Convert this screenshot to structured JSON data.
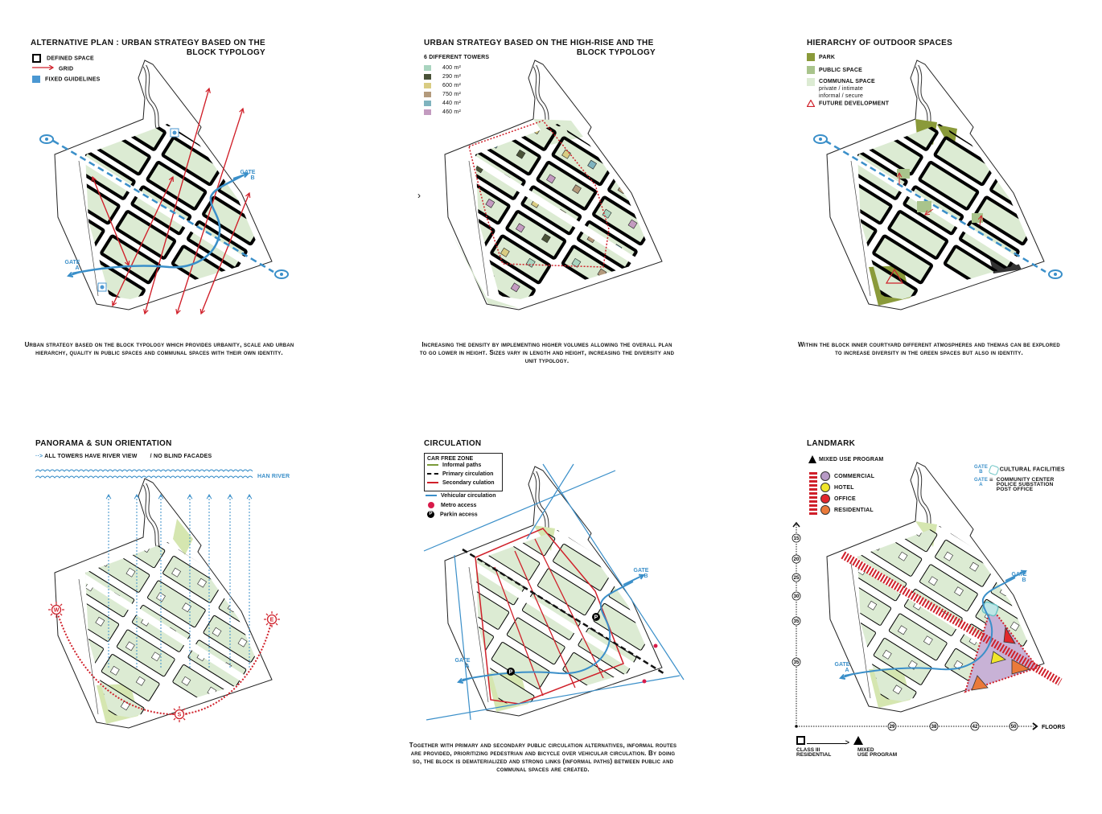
{
  "panels": {
    "alt_plan": {
      "title_line1": "ALTERNATIVE PLAN : URBAN STRATEGY BASED ON THE",
      "title_line2": "BLOCK TYPOLOGY",
      "legend": [
        {
          "label": "DEFINED SPACE",
          "icon": "black-square-outline-icon"
        },
        {
          "label": "GRID",
          "icon": "red-arrow-icon"
        },
        {
          "label": "FIXED GUIDELINES",
          "icon": "blue-square-icon"
        }
      ],
      "gate_a": [
        "GATE",
        "A"
      ],
      "gate_b": [
        "GATE",
        "B"
      ],
      "caption": "Urban strategy based on the block typology which provides urbanity, scale and urban hierarchy, quality in public spaces and communal spaces with their own identity."
    },
    "high_rise": {
      "title_line1": "URBAN STRATEGY BASED ON THE HIGH-RISE AND THE",
      "title_line2": "BLOCK TYPOLOGY",
      "legend_title": "6 DIFFERENT TOWERS",
      "legend": [
        {
          "label": "400 m²",
          "color": "#a9d4bf"
        },
        {
          "label": "290 m²",
          "color": "#4a5238"
        },
        {
          "label": "600 m²",
          "color": "#d9cc82"
        },
        {
          "label": "750 m²",
          "color": "#b39a7c"
        },
        {
          "label": "440 m²",
          "color": "#7fb3be"
        },
        {
          "label": "460 m²",
          "color": "#c39bc0"
        }
      ],
      "caption": "Increasing the density by implementing higher volumes allowing the overall plan to go lower in height. Sizes vary in length and height, increasing the diversity and unit typology."
    },
    "outdoor": {
      "title": "HIERARCHY OF OUTDOOR SPACES",
      "legend": [
        {
          "label": "PARK",
          "color": "#8a9a3a"
        },
        {
          "label": "PUBLIC SPACE",
          "color": "#a9c48c"
        },
        {
          "label": "COMMUNAL SPACE",
          "sub1": "private / intimate",
          "sub2": "informal / secure",
          "color": "#dcebd3"
        },
        {
          "label": "FUTURE DEVELOPMENT",
          "icon": "warning-triangle-icon"
        }
      ],
      "caption": "Within the block inner courtyard different atmospheres and themas can be explored to increase diversity in the green spaces but also in identity."
    },
    "panorama": {
      "title": "PANORAMA & SUN ORIENTATION",
      "legend_view": "ALL TOWERS HAVE RIVER VIEW",
      "legend_facade": "NO BLIND FACADES",
      "river_label": "HAN RIVER",
      "sun_west": "W",
      "sun_east": "E",
      "sun_south": "S"
    },
    "circulation": {
      "title": "CIRCULATION",
      "box_title": "CAR FREE ZONE",
      "box_items": [
        {
          "label": "Informal paths",
          "color": "#7a9a3a"
        },
        {
          "label": "Primary circulation",
          "color": "#111111"
        },
        {
          "label": "Secondary culation",
          "color": "#d0202a"
        }
      ],
      "items": [
        {
          "label": "Vehicular circulation",
          "color": "#3a8fc9"
        },
        {
          "label": "Metro access",
          "color": "#d81b4a"
        },
        {
          "label": "Parkin access",
          "icon": "parking-icon"
        }
      ],
      "parking_letter": "P",
      "gate_a": [
        "GATE",
        "A"
      ],
      "gate_b": [
        "GATE",
        "B"
      ],
      "caption": "Together with primary and secondary public circulation alternatives, informal routes are provided, prioritizing pedestrian and bicycle over vehicular circulation. By doing so, the block is dematerialized and strong links (informal paths) between public and communal spaces are created."
    },
    "landmark": {
      "title": "LANDMARK",
      "mixed_use": "MIXED USE PROGRAM",
      "programs": [
        {
          "label": "COMMERCIAL",
          "color": "#b79ac6"
        },
        {
          "label": "HOTEL",
          "color": "#f0e62a"
        },
        {
          "label": "OFFICE",
          "color": "#e2262c"
        },
        {
          "label": "RESIDENTIAL",
          "color": "#ea7a3a"
        }
      ],
      "gate_b_small": [
        "GATE",
        "B"
      ],
      "gate_a_small": [
        "GATE",
        "A"
      ],
      "cultural": "CULTURAL FACILITIES",
      "community": [
        "COMMUNITY CENTER",
        "POLICE SUBSTATION",
        "POST OFFICE"
      ],
      "gate_a": [
        "GATE",
        "A"
      ],
      "gate_b": [
        "GATE",
        "B"
      ],
      "y_ticks": [
        "15",
        "20",
        "25",
        "30",
        "35",
        "35"
      ],
      "x_ticks": [
        "29",
        "38",
        "42",
        "50"
      ],
      "x_axis_label": "FLOORS",
      "from_label": [
        "CLASS III",
        "RESIDENTIAL"
      ],
      "to_label": [
        "MIXED",
        "USE PROGRAM"
      ]
    }
  },
  "colors": {
    "grid_red": "#d0202a",
    "guideline_blue": "#3a8fc9",
    "block_fill": "#dcebd3",
    "park": "#8a9a3a",
    "public": "#a9c48c",
    "light_green": "#d5e6b0"
  }
}
